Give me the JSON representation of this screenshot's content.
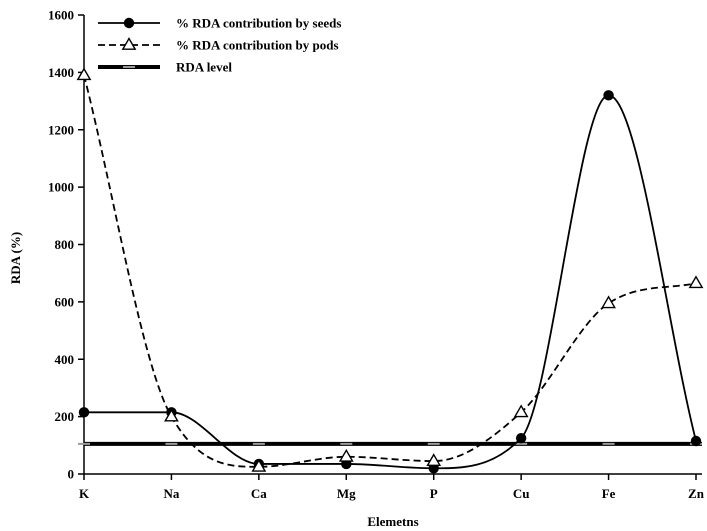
{
  "chart_data": {
    "type": "line",
    "title": "",
    "xlabel": "Elemetns",
    "ylabel": "RDA (%)",
    "categories": [
      "K",
      "Na",
      "Ca",
      "Mg",
      "P",
      "Cu",
      "Fe",
      "Zn"
    ],
    "ylim": [
      0,
      1600
    ],
    "yticks": [
      0,
      200,
      400,
      600,
      800,
      1000,
      1200,
      1400,
      1600
    ],
    "grid": false,
    "legend_position": "top-left",
    "series": [
      {
        "name": "% RDA contribution by seeds",
        "style": "solid",
        "marker": "filled-circle",
        "color": "#000000",
        "values": [
          215,
          215,
          35,
          35,
          20,
          125,
          1320,
          115
        ]
      },
      {
        "name": "% RDA contribution by pods",
        "style": "dashed",
        "marker": "open-triangle",
        "color": "#000000",
        "values": [
          1390,
          200,
          25,
          60,
          45,
          215,
          595,
          665
        ]
      },
      {
        "name": "RDA level",
        "style": "thick-banded",
        "marker": "none",
        "color": "#000000",
        "band_color": "#9a9a9a",
        "values": [
          105,
          105,
          105,
          105,
          105,
          105,
          105,
          105
        ]
      }
    ]
  }
}
